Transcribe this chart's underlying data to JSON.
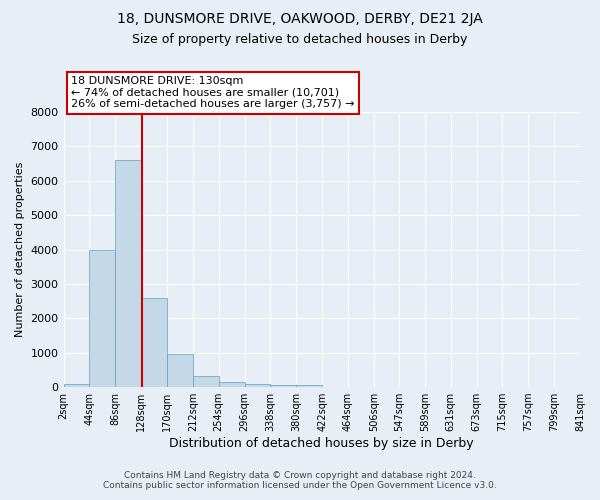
{
  "title_line1": "18, DUNSMORE DRIVE, OAKWOOD, DERBY, DE21 2JA",
  "title_line2": "Size of property relative to detached houses in Derby",
  "xlabel": "Distribution of detached houses by size in Derby",
  "ylabel": "Number of detached properties",
  "bin_edges": [
    2,
    44,
    86,
    128,
    170,
    212,
    254,
    296,
    338,
    380,
    422,
    464,
    506,
    547,
    589,
    631,
    673,
    715,
    757,
    799,
    841
  ],
  "bar_heights": [
    80,
    4000,
    6600,
    2600,
    950,
    330,
    140,
    90,
    70,
    60,
    0,
    0,
    0,
    0,
    0,
    0,
    0,
    0,
    0,
    0
  ],
  "bar_color": "#c5d8e8",
  "bar_edgecolor": "#5a9fc8",
  "vline_x": 130,
  "vline_color": "#cc0000",
  "ylim": [
    0,
    8000
  ],
  "yticks": [
    0,
    1000,
    2000,
    3000,
    4000,
    5000,
    6000,
    7000,
    8000
  ],
  "annotation_title": "18 DUNSMORE DRIVE: 130sqm",
  "annotation_line1": "← 74% of detached houses are smaller (10,701)",
  "annotation_line2": "26% of semi-detached houses are larger (3,757) →",
  "annotation_box_color": "#ffffff",
  "annotation_box_edgecolor": "#cc0000",
  "background_color": "#e8eef5",
  "grid_color": "#ffffff",
  "footer_line1": "Contains HM Land Registry data © Crown copyright and database right 2024.",
  "footer_line2": "Contains public sector information licensed under the Open Government Licence v3.0."
}
